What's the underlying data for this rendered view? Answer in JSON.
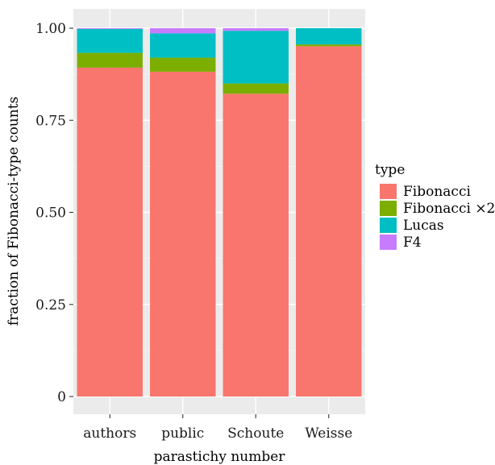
{
  "chart_data": {
    "type": "bar",
    "stacked": true,
    "xlabel": "parastichy number",
    "ylabel": "fraction of  Fibonacci-type counts",
    "categories": [
      "authors",
      "public",
      "Schoute",
      "Weisse"
    ],
    "ylim": [
      0,
      1
    ],
    "y_ticks": [
      "0",
      "0.25",
      "0.50",
      "0.75",
      "1.00"
    ],
    "y_tick_values": [
      0,
      0.25,
      0.5,
      0.75,
      1.0
    ],
    "grid": true,
    "legend": {
      "title": "type",
      "position": "right"
    },
    "series": [
      {
        "name": "Fibonacci",
        "color": "#F8766D",
        "values": [
          0.893,
          0.882,
          0.822,
          0.951
        ]
      },
      {
        "name": "Fibonacci ×2",
        "color": "#7CAE00",
        "values": [
          0.04,
          0.038,
          0.028,
          0.005
        ]
      },
      {
        "name": "Lucas",
        "color": "#00BFC4",
        "values": [
          0.065,
          0.066,
          0.143,
          0.044
        ]
      },
      {
        "name": "F4",
        "color": "#C77CFF",
        "values": [
          0.002,
          0.014,
          0.007,
          0.0
        ]
      }
    ]
  }
}
